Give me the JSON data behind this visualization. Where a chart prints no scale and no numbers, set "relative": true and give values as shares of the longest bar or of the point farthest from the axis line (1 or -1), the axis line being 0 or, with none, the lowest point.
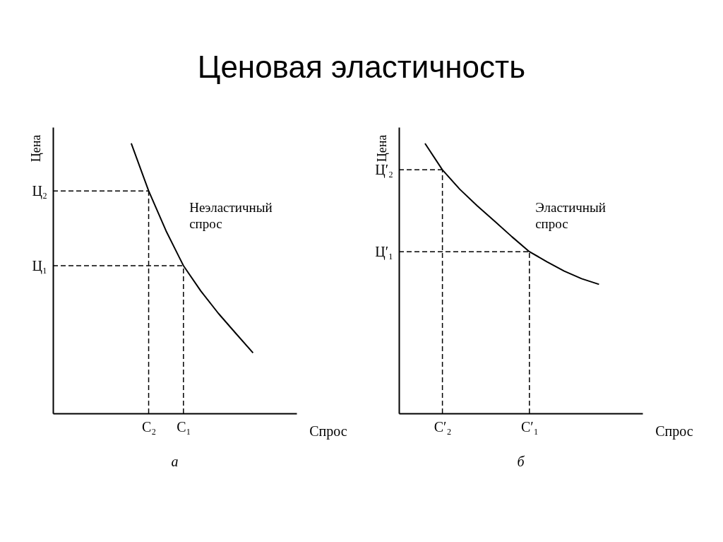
{
  "chart_data": [
    {
      "type": "line",
      "title": "Ценовая эластичность",
      "subtitle": "а",
      "xlabel": "Спрос",
      "ylabel": "Цена",
      "relative": true,
      "categories": [
        null,
        null,
        null,
        null,
        null,
        "С₂",
        null,
        "С₁",
        null,
        null,
        null,
        null,
        null,
        null
      ],
      "series": [
        {
          "color": "#000000",
          "values": [
            null,
            null,
            null,
            null,
            1,
            0.824,
            0.676,
            0.547,
            0.453,
            0.371,
            0.297,
            0.224,
            null,
            null
          ]
        }
      ],
      "ref_lines": [
        {
          "axis": "y",
          "value": 0.824,
          "label": "Ц₂",
          "line_style": "dashed"
        },
        {
          "axis": "y",
          "value": 0.547,
          "label": "Ц₁",
          "line_style": "dashed"
        },
        {
          "axis": "x",
          "value": "С₂",
          "line_style": "dashed"
        },
        {
          "axis": "x",
          "value": "С₁",
          "line_style": "dashed"
        }
      ],
      "annotations": [
        "Неэластичный спрос"
      ]
    },
    {
      "type": "line",
      "subtitle": "б",
      "xlabel": "Спрос",
      "ylabel": "Цена",
      "relative": true,
      "categories": [
        null,
        null,
        "С′₂",
        null,
        null,
        null,
        null,
        "С′₁",
        null,
        null,
        null,
        null,
        null,
        null
      ],
      "series": [
        {
          "color": "#000000",
          "values": [
            null,
            1,
            0.902,
            0.83,
            0.769,
            0.712,
            0.654,
            0.599,
            0.562,
            0.527,
            0.499,
            0.478,
            null,
            null
          ]
        }
      ],
      "ref_lines": [
        {
          "axis": "y",
          "value": 0.902,
          "label": "Ц′₂",
          "line_style": "dashed"
        },
        {
          "axis": "y",
          "value": 0.599,
          "label": "Ц′₁",
          "line_style": "dashed"
        },
        {
          "axis": "x",
          "value": "С′₂",
          "line_style": "dashed"
        },
        {
          "axis": "x",
          "value": "С′₁",
          "line_style": "dashed"
        }
      ],
      "annotations": [
        "Эластичный спрос"
      ]
    }
  ]
}
